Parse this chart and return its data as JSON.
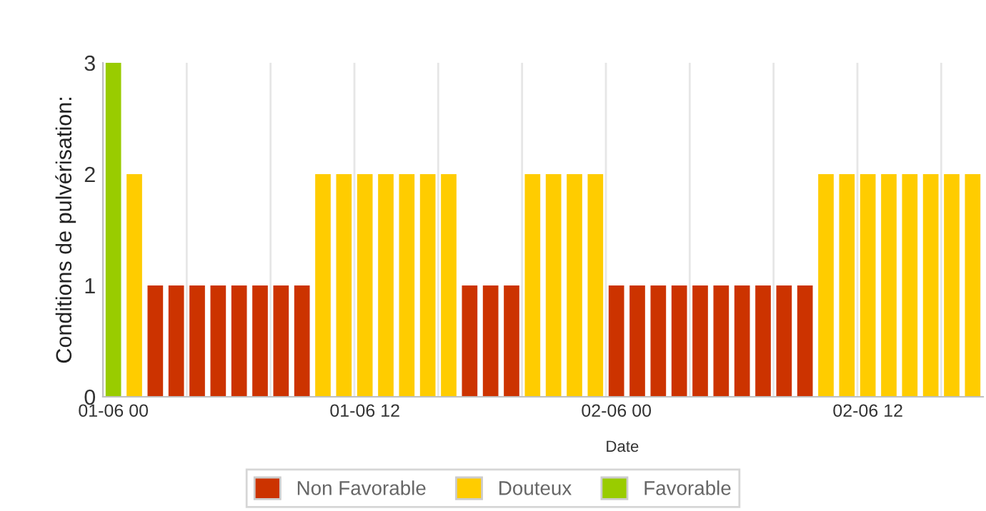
{
  "chart_data": {
    "type": "bar",
    "xlabel": "Date",
    "ylabel": "Conditions de pulvérisation:",
    "categories": [
      "01-06 00",
      null,
      null,
      null,
      null,
      null,
      null,
      null,
      null,
      null,
      null,
      null,
      "01-06 12",
      null,
      null,
      null,
      null,
      null,
      null,
      null,
      null,
      null,
      null,
      null,
      "02-06 00",
      null,
      null,
      null,
      null,
      null,
      null,
      null,
      null,
      null,
      null,
      null,
      "02-06 12",
      null,
      null,
      null,
      null,
      null
    ],
    "series": [
      {
        "name": "Non Favorable",
        "color": "#cc3300",
        "values": [
          null,
          null,
          1,
          1,
          1,
          1,
          1,
          1,
          1,
          1,
          null,
          null,
          null,
          null,
          null,
          null,
          null,
          1,
          1,
          1,
          null,
          null,
          null,
          null,
          1,
          1,
          1,
          1,
          1,
          1,
          1,
          1,
          1,
          1,
          null,
          null,
          null,
          null,
          null,
          null,
          null,
          null
        ]
      },
      {
        "name": "Douteux",
        "color": "#ffcc00",
        "values": [
          null,
          2,
          null,
          null,
          null,
          null,
          null,
          null,
          null,
          null,
          2,
          2,
          2,
          2,
          2,
          2,
          2,
          null,
          null,
          null,
          2,
          2,
          2,
          2,
          null,
          null,
          null,
          null,
          null,
          null,
          null,
          null,
          null,
          null,
          2,
          2,
          2,
          2,
          2,
          2,
          2,
          2
        ]
      },
      {
        "name": "Favorable",
        "color": "#99cc00",
        "values": [
          3,
          null,
          null,
          null,
          null,
          null,
          null,
          null,
          null,
          null,
          null,
          null,
          null,
          null,
          null,
          null,
          null,
          null,
          null,
          null,
          null,
          null,
          null,
          null,
          null,
          null,
          null,
          null,
          null,
          null,
          null,
          null,
          null,
          null,
          null,
          null,
          null,
          null,
          null,
          null,
          null,
          null
        ]
      }
    ],
    "ylim": [
      0,
      3
    ],
    "yticks": [
      0,
      1,
      2,
      3
    ],
    "grid": "x",
    "legend": "bottom"
  }
}
